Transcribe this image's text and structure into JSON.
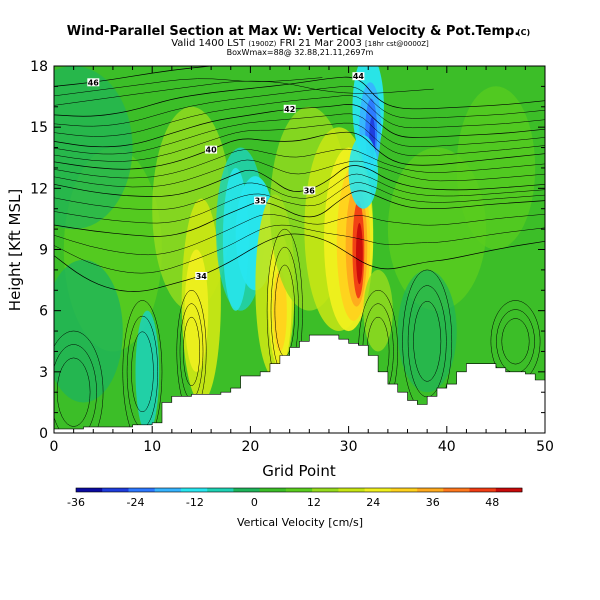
{
  "header": {
    "title": "Wind-Parallel Section at Max W: Vertical Velocity & Pot.Temp.",
    "copyright": "(C)",
    "valid_line_main": "Valid 1400 LST",
    "valid_line_small1": "(1900Z)",
    "valid_line_date": "FRI 21 Mar 2003",
    "valid_line_small2": "[18hr cst@0000Z]",
    "info_line": "BoxWmax=88@ 32.88,21.11,2697m"
  },
  "colorbar": {
    "label": "Vertical Velocity [cm/s]",
    "ticks": [
      "-36",
      "-24",
      "-12",
      "0",
      "12",
      "24",
      "36",
      "48"
    ],
    "colors": [
      "#0a0aa0",
      "#1e3cdc",
      "#2d78ff",
      "#37b4ff",
      "#28e6f0",
      "#1ed2b4",
      "#1eb45a",
      "#3cbe28",
      "#5acd1e",
      "#96dc1e",
      "#c8e614",
      "#f0f01e",
      "#ffd21e",
      "#ffaa1e",
      "#ff781e",
      "#f03c14",
      "#c80a0a"
    ]
  },
  "chart_data": {
    "type": "heatmap",
    "title": "Wind-Parallel Section at Max W: Vertical Velocity & Pot.Temp.",
    "xlabel": "Grid Point",
    "ylabel": "Height [Kft MSL]",
    "xlim": [
      0,
      50
    ],
    "ylim": [
      0,
      18
    ],
    "xticks": [
      "0",
      "10",
      "20",
      "30",
      "40",
      "50"
    ],
    "yticks": [
      "0",
      "3",
      "6",
      "9",
      "12",
      "15",
      "18"
    ],
    "field": "Vertical Velocity [cm/s]",
    "field_range": [
      -36,
      54
    ],
    "max_w": {
      "value": 88,
      "x": 31,
      "y": 9
    },
    "terrain": [
      {
        "x": 0,
        "y": 0.2
      },
      {
        "x": 3,
        "y": 0.3
      },
      {
        "x": 8,
        "y": 0.4
      },
      {
        "x": 10,
        "y": 0.5
      },
      {
        "x": 11,
        "y": 1.5
      },
      {
        "x": 12,
        "y": 1.8
      },
      {
        "x": 14,
        "y": 1.9
      },
      {
        "x": 17,
        "y": 2.0
      },
      {
        "x": 18,
        "y": 2.2
      },
      {
        "x": 19,
        "y": 2.8
      },
      {
        "x": 21,
        "y": 3.0
      },
      {
        "x": 22,
        "y": 3.4
      },
      {
        "x": 23,
        "y": 3.8
      },
      {
        "x": 24,
        "y": 4.2
      },
      {
        "x": 25,
        "y": 4.5
      },
      {
        "x": 26,
        "y": 4.8
      },
      {
        "x": 28,
        "y": 4.8
      },
      {
        "x": 29,
        "y": 4.6
      },
      {
        "x": 30,
        "y": 4.4
      },
      {
        "x": 31,
        "y": 4.3
      },
      {
        "x": 32,
        "y": 3.8
      },
      {
        "x": 33,
        "y": 3.0
      },
      {
        "x": 34,
        "y": 2.4
      },
      {
        "x": 35,
        "y": 2.0
      },
      {
        "x": 36,
        "y": 1.6
      },
      {
        "x": 37,
        "y": 1.4
      },
      {
        "x": 38,
        "y": 1.8
      },
      {
        "x": 39,
        "y": 2.2
      },
      {
        "x": 40,
        "y": 2.4
      },
      {
        "x": 41,
        "y": 3.0
      },
      {
        "x": 42,
        "y": 3.4
      },
      {
        "x": 44,
        "y": 3.4
      },
      {
        "x": 45,
        "y": 3.2
      },
      {
        "x": 46,
        "y": 3.0
      },
      {
        "x": 48,
        "y": 2.9
      },
      {
        "x": 49,
        "y": 2.6
      },
      {
        "x": 50,
        "y": 2.6
      }
    ],
    "theta_contours": [
      {
        "label": "34",
        "points": [
          [
            0,
            8.7
          ],
          [
            3,
            7.6
          ],
          [
            6,
            7.0
          ],
          [
            9,
            6.9
          ],
          [
            12,
            7.3
          ],
          [
            15,
            7.7
          ],
          [
            18,
            8.4
          ],
          [
            20,
            9.0
          ],
          [
            22,
            9.5
          ],
          [
            24,
            9.8
          ],
          [
            26,
            9.7
          ],
          [
            28,
            9.4
          ],
          [
            30,
            8.8
          ],
          [
            32,
            8.2
          ],
          [
            34,
            8.0
          ],
          [
            36,
            8.2
          ],
          [
            38,
            8.4
          ],
          [
            40,
            8.5
          ],
          [
            43,
            8.8
          ],
          [
            46,
            9.1
          ],
          [
            50,
            9.4
          ]
        ]
      },
      {
        "label": "35",
        "points": [
          [
            0,
            10.2
          ],
          [
            4,
            9.9
          ],
          [
            8,
            9.7
          ],
          [
            11,
            9.6
          ],
          [
            14,
            9.9
          ],
          [
            17,
            10.6
          ],
          [
            19,
            11.0
          ],
          [
            21,
            11.4
          ],
          [
            23,
            11.1
          ],
          [
            25,
            10.6
          ],
          [
            27,
            10.6
          ],
          [
            29,
            11.4
          ],
          [
            31,
            12.0
          ],
          [
            33,
            11.6
          ],
          [
            35,
            11.2
          ],
          [
            37,
            11.0
          ],
          [
            40,
            11.0
          ],
          [
            44,
            11.2
          ],
          [
            50,
            11.4
          ]
        ]
      },
      {
        "label": "36",
        "points": [
          [
            0,
            12.2
          ],
          [
            4,
            11.8
          ],
          [
            8,
            11.6
          ],
          [
            12,
            11.6
          ],
          [
            15,
            12.0
          ],
          [
            18,
            12.6
          ],
          [
            20,
            13.0
          ],
          [
            22,
            12.5
          ],
          [
            24,
            11.8
          ],
          [
            26,
            11.9
          ],
          [
            28,
            12.4
          ],
          [
            30,
            13.2
          ],
          [
            32,
            13.0
          ],
          [
            34,
            12.4
          ],
          [
            37,
            12.0
          ],
          [
            41,
            11.9
          ],
          [
            45,
            12.0
          ],
          [
            50,
            12.2
          ]
        ]
      },
      {
        "label": "40",
        "points": [
          [
            0,
            13.3
          ],
          [
            4,
            13.0
          ],
          [
            8,
            12.9
          ],
          [
            12,
            13.2
          ],
          [
            16,
            13.9
          ],
          [
            19,
            14.5
          ],
          [
            22,
            14.3
          ],
          [
            25,
            14.3
          ],
          [
            28,
            14.7
          ],
          [
            31,
            14.8
          ],
          [
            33,
            13.8
          ],
          [
            35,
            13.2
          ],
          [
            38,
            13.1
          ],
          [
            42,
            13.3
          ],
          [
            46,
            13.5
          ],
          [
            50,
            13.7
          ]
        ]
      },
      {
        "label": "42",
        "points": [
          [
            0,
            14.3
          ],
          [
            4,
            14.0
          ],
          [
            8,
            14.1
          ],
          [
            12,
            14.7
          ],
          [
            16,
            15.3
          ],
          [
            20,
            15.6
          ],
          [
            24,
            15.9
          ],
          [
            28,
            16.0
          ],
          [
            31,
            16.2
          ],
          [
            33,
            15.2
          ],
          [
            35,
            14.5
          ],
          [
            38,
            14.5
          ],
          [
            42,
            14.6
          ],
          [
            46,
            14.7
          ],
          [
            50,
            14.9
          ]
        ]
      },
      {
        "label": "44",
        "points": [
          [
            0,
            15.6
          ],
          [
            4,
            15.5
          ],
          [
            8,
            15.8
          ],
          [
            12,
            16.4
          ],
          [
            16,
            16.7
          ],
          [
            20,
            16.9
          ],
          [
            24,
            17.1
          ],
          [
            28,
            17.4
          ],
          [
            31,
            17.5
          ],
          [
            33,
            16.3
          ],
          [
            35,
            15.9
          ],
          [
            38,
            15.9
          ],
          [
            42,
            16.0
          ],
          [
            46,
            16.1
          ],
          [
            50,
            16.3
          ]
        ]
      },
      {
        "label": "46",
        "points": [
          [
            0,
            17.0
          ],
          [
            4,
            17.2
          ],
          [
            8,
            17.5
          ],
          [
            12,
            17.8
          ],
          [
            16,
            18.0
          ]
        ]
      }
    ]
  }
}
